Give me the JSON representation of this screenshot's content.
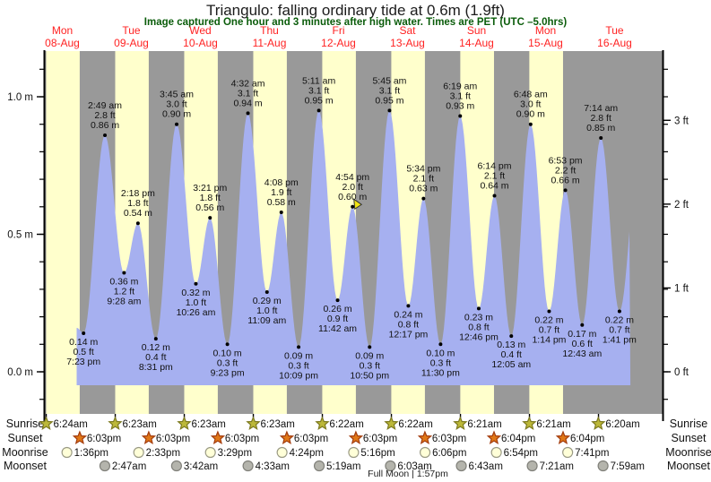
{
  "title": "Triangulo: falling  ordinary tide at 0.6m (1.9ft)",
  "subtitle": "Image captured One hour and 3 minutes after high water. Times are PET (UTC –5.0hrs)",
  "chart_data": {
    "type": "area",
    "title": "Triangulo tide curve",
    "ylabel_left": "meters",
    "ylabel_right": "feet",
    "ylim_m": [
      -0.15,
      1.17
    ],
    "axis_left_labels": [
      {
        "value": 0.0,
        "label": "0.0 m"
      },
      {
        "value": 0.5,
        "label": "0.5 m"
      },
      {
        "value": 1.0,
        "label": "1.0 m"
      }
    ],
    "axis_right_labels": [
      {
        "value_ft": 0,
        "label": "0 ft"
      },
      {
        "value_ft": 1,
        "label": "1 ft"
      },
      {
        "value_ft": 2,
        "label": "2 ft"
      },
      {
        "value_ft": 3,
        "label": "3 ft"
      }
    ],
    "days": [
      {
        "dow": "Mon",
        "date": "08-Aug"
      },
      {
        "dow": "Tue",
        "date": "09-Aug"
      },
      {
        "dow": "Wed",
        "date": "10-Aug"
      },
      {
        "dow": "Thu",
        "date": "11-Aug"
      },
      {
        "dow": "Fri",
        "date": "12-Aug"
      },
      {
        "dow": "Sat",
        "date": "13-Aug"
      },
      {
        "dow": "Sun",
        "date": "14-Aug"
      },
      {
        "dow": "Mon",
        "date": "15-Aug"
      },
      {
        "dow": "Tue",
        "date": "16-Aug"
      }
    ],
    "extremes": [
      {
        "day": 0,
        "type": "low",
        "time": "7:23 pm",
        "m": 0.14,
        "ft": 0.5
      },
      {
        "day": 1,
        "type": "high",
        "time": "2:49 am",
        "m": 0.86,
        "ft": 2.8
      },
      {
        "day": 1,
        "type": "low",
        "time": "9:28 am",
        "m": 0.36,
        "ft": 1.2
      },
      {
        "day": 1,
        "type": "high",
        "time": "2:18 pm",
        "m": 0.54,
        "ft": 1.8
      },
      {
        "day": 1,
        "type": "low",
        "time": "8:31 pm",
        "m": 0.12,
        "ft": 0.4
      },
      {
        "day": 2,
        "type": "high",
        "time": "3:45 am",
        "m": 0.9,
        "ft": 3.0
      },
      {
        "day": 2,
        "type": "low",
        "time": "10:26 am",
        "m": 0.32,
        "ft": 1.0
      },
      {
        "day": 2,
        "type": "high",
        "time": "3:21 pm",
        "m": 0.56,
        "ft": 1.8
      },
      {
        "day": 2,
        "type": "low",
        "time": "9:23 pm",
        "m": 0.1,
        "ft": 0.3
      },
      {
        "day": 3,
        "type": "high",
        "time": "4:32 am",
        "m": 0.94,
        "ft": 3.1
      },
      {
        "day": 3,
        "type": "low",
        "time": "11:09 am",
        "m": 0.29,
        "ft": 1.0
      },
      {
        "day": 3,
        "type": "high",
        "time": "4:08 pm",
        "m": 0.58,
        "ft": 1.9
      },
      {
        "day": 3,
        "type": "low",
        "time": "10:09 pm",
        "m": 0.09,
        "ft": 0.3
      },
      {
        "day": 4,
        "type": "high",
        "time": "5:11 am",
        "m": 0.95,
        "ft": 3.1
      },
      {
        "day": 4,
        "type": "low",
        "time": "11:42 am",
        "m": 0.26,
        "ft": 0.9
      },
      {
        "day": 4,
        "type": "high",
        "time": "4:54 pm",
        "m": 0.6,
        "ft": 2.0,
        "current": true
      },
      {
        "day": 4,
        "type": "low",
        "time": "10:50 pm",
        "m": 0.09,
        "ft": 0.3
      },
      {
        "day": 5,
        "type": "high",
        "time": "5:45 am",
        "m": 0.95,
        "ft": 3.1
      },
      {
        "day": 5,
        "type": "low",
        "time": "12:17 pm",
        "m": 0.24,
        "ft": 0.8
      },
      {
        "day": 5,
        "type": "high",
        "time": "5:34 pm",
        "m": 0.63,
        "ft": 2.1
      },
      {
        "day": 5,
        "type": "low",
        "time": "11:30 pm",
        "m": 0.1,
        "ft": 0.3
      },
      {
        "day": 6,
        "type": "high",
        "time": "6:19 am",
        "m": 0.93,
        "ft": 3.1
      },
      {
        "day": 6,
        "type": "low",
        "time": "12:46 pm",
        "m": 0.23,
        "ft": 0.8
      },
      {
        "day": 6,
        "type": "high",
        "time": "6:14 pm",
        "m": 0.64,
        "ft": 2.1
      },
      {
        "day": 7,
        "type": "low",
        "time": "12:05 am",
        "m": 0.13,
        "ft": 0.4
      },
      {
        "day": 7,
        "type": "high",
        "time": "6:48 am",
        "m": 0.9,
        "ft": 3.0
      },
      {
        "day": 7,
        "type": "low",
        "time": "1:14 pm",
        "m": 0.22,
        "ft": 0.7
      },
      {
        "day": 7,
        "type": "high",
        "time": "6:53 pm",
        "m": 0.66,
        "ft": 2.2
      },
      {
        "day": 8,
        "type": "low",
        "time": "12:43 am",
        "m": 0.17,
        "ft": 0.6
      },
      {
        "day": 8,
        "type": "high",
        "time": "7:14 am",
        "m": 0.85,
        "ft": 2.8
      },
      {
        "day": 8,
        "type": "low",
        "time": "1:41 pm",
        "m": 0.22,
        "ft": 0.7
      }
    ],
    "current_marker": {
      "day": 4,
      "time": "4:54 pm",
      "m": 0.6
    },
    "curve_start": {
      "day": 0,
      "hour": 17.0,
      "m": 0.16
    },
    "curve_end": {
      "day": 8,
      "hour": 21.0,
      "m": 0.85,
      "clip_hour": 17.5
    },
    "colors": {
      "day_band": "#ffffcc",
      "night_band": "#999999",
      "tide_fill": "#a6b0f0",
      "axis": "#000000",
      "day_label": "#ff2222",
      "annotation": "#111111",
      "marker_fill": "#f0e312",
      "marker_stroke": "#333333"
    }
  },
  "astro": {
    "rows": [
      {
        "label": "Sunrise",
        "icon": "sunrise-star",
        "entries": [
          {
            "day": 0,
            "time": "6:24am"
          },
          {
            "day": 1,
            "time": "6:23am"
          },
          {
            "day": 2,
            "time": "6:23am"
          },
          {
            "day": 3,
            "time": "6:23am"
          },
          {
            "day": 4,
            "time": "6:22am"
          },
          {
            "day": 5,
            "time": "6:22am"
          },
          {
            "day": 6,
            "time": "6:21am"
          },
          {
            "day": 7,
            "time": "6:21am"
          },
          {
            "day": 8,
            "time": "6:20am"
          }
        ],
        "icon_fill": "#bcb838",
        "icon_stroke": "#7d7a20"
      },
      {
        "label": "Sunset",
        "icon": "sunset-star",
        "entries": [
          {
            "day": 0,
            "time": "6:03pm"
          },
          {
            "day": 1,
            "time": "6:03pm"
          },
          {
            "day": 2,
            "time": "6:03pm"
          },
          {
            "day": 3,
            "time": "6:03pm"
          },
          {
            "day": 4,
            "time": "6:03pm"
          },
          {
            "day": 5,
            "time": "6:03pm"
          },
          {
            "day": 6,
            "time": "6:04pm"
          },
          {
            "day": 7,
            "time": "6:04pm"
          }
        ],
        "icon_fill": "#e07818",
        "icon_stroke": "#a33d0f"
      },
      {
        "label": "Moonrise",
        "icon": "moonrise-circle",
        "entries": [
          {
            "day": 0,
            "time": "1:36pm"
          },
          {
            "day": 1,
            "time": "2:33pm"
          },
          {
            "day": 2,
            "time": "3:29pm"
          },
          {
            "day": 3,
            "time": "4:24pm"
          },
          {
            "day": 4,
            "time": "5:16pm"
          },
          {
            "day": 5,
            "time": "6:06pm"
          },
          {
            "day": 6,
            "time": "6:54pm"
          },
          {
            "day": 7,
            "time": "7:41pm"
          }
        ],
        "icon_fill": "#ffffd8",
        "icon_stroke": "#9a9a84"
      },
      {
        "label": "Moonset",
        "icon": "moonset-circle",
        "entries": [
          {
            "day": 1,
            "time": "2:47am"
          },
          {
            "day": 2,
            "time": "3:42am"
          },
          {
            "day": 3,
            "time": "4:33am"
          },
          {
            "day": 4,
            "time": "5:19am"
          },
          {
            "day": 5,
            "time": "6:03am"
          },
          {
            "day": 6,
            "time": "6:43am"
          },
          {
            "day": 7,
            "time": "7:21am"
          },
          {
            "day": 8,
            "time": "7:59am"
          }
        ],
        "icon_fill": "#b4b4ac",
        "icon_stroke": "#80807a"
      }
    ],
    "full_moon": "Full Moon | 1:57pm"
  }
}
